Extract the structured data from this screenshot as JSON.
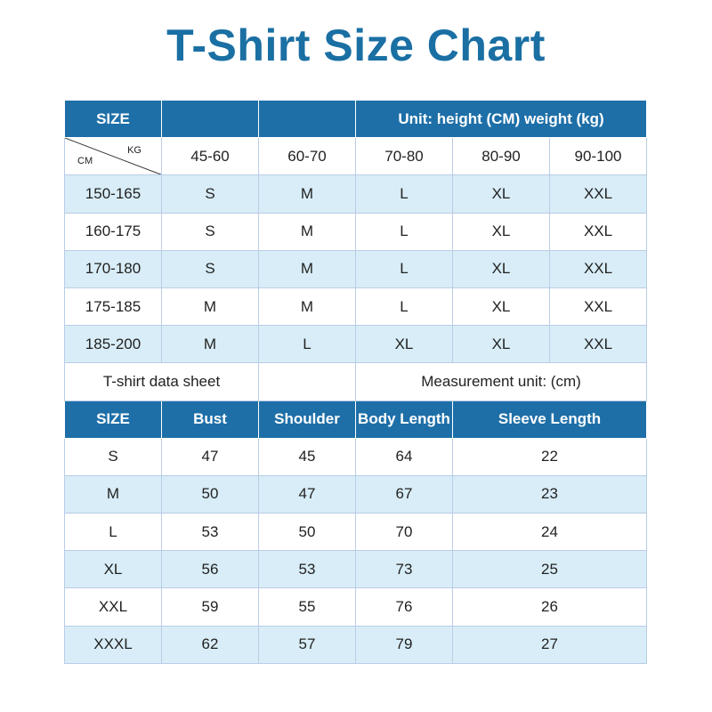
{
  "title": "T-Shirt Size Chart",
  "colors": {
    "title": "#1a6fa3",
    "header": "#1e6fa8",
    "band": "#d8edf7",
    "border": "#b9cde6"
  },
  "weight_table": {
    "header": {
      "size_label": "SIZE",
      "unit_label": "Unit: height (CM) weight (kg)"
    },
    "corner": {
      "kg": "KG",
      "cm": "CM"
    },
    "weights": [
      "45-60",
      "60-70",
      "70-80",
      "80-90",
      "90-100"
    ],
    "rows": [
      {
        "height": "150-165",
        "sizes": [
          "S",
          "M",
          "L",
          "XL",
          "XXL"
        ]
      },
      {
        "height": "160-175",
        "sizes": [
          "S",
          "M",
          "L",
          "XL",
          "XXL"
        ]
      },
      {
        "height": "170-180",
        "sizes": [
          "S",
          "M",
          "L",
          "XL",
          "XXL"
        ]
      },
      {
        "height": "175-185",
        "sizes": [
          "M",
          "M",
          "L",
          "XL",
          "XXL"
        ]
      },
      {
        "height": "185-200",
        "sizes": [
          "M",
          "L",
          "XL",
          "XL",
          "XXL"
        ]
      }
    ]
  },
  "info_row": {
    "sheet_label": "T-shirt data sheet",
    "measurement_label": "Measurement unit: (cm)"
  },
  "data_table": {
    "headers": [
      "SIZE",
      "Bust",
      "Shoulder",
      "Body Length",
      "Sleeve Length"
    ],
    "rows": [
      [
        "S",
        "47",
        "45",
        "64",
        "22"
      ],
      [
        "M",
        "50",
        "47",
        "67",
        "23"
      ],
      [
        "L",
        "53",
        "50",
        "70",
        "24"
      ],
      [
        "XL",
        "56",
        "53",
        "73",
        "25"
      ],
      [
        "XXL",
        "59",
        "55",
        "76",
        "26"
      ],
      [
        "XXXL",
        "62",
        "57",
        "79",
        "27"
      ]
    ]
  }
}
